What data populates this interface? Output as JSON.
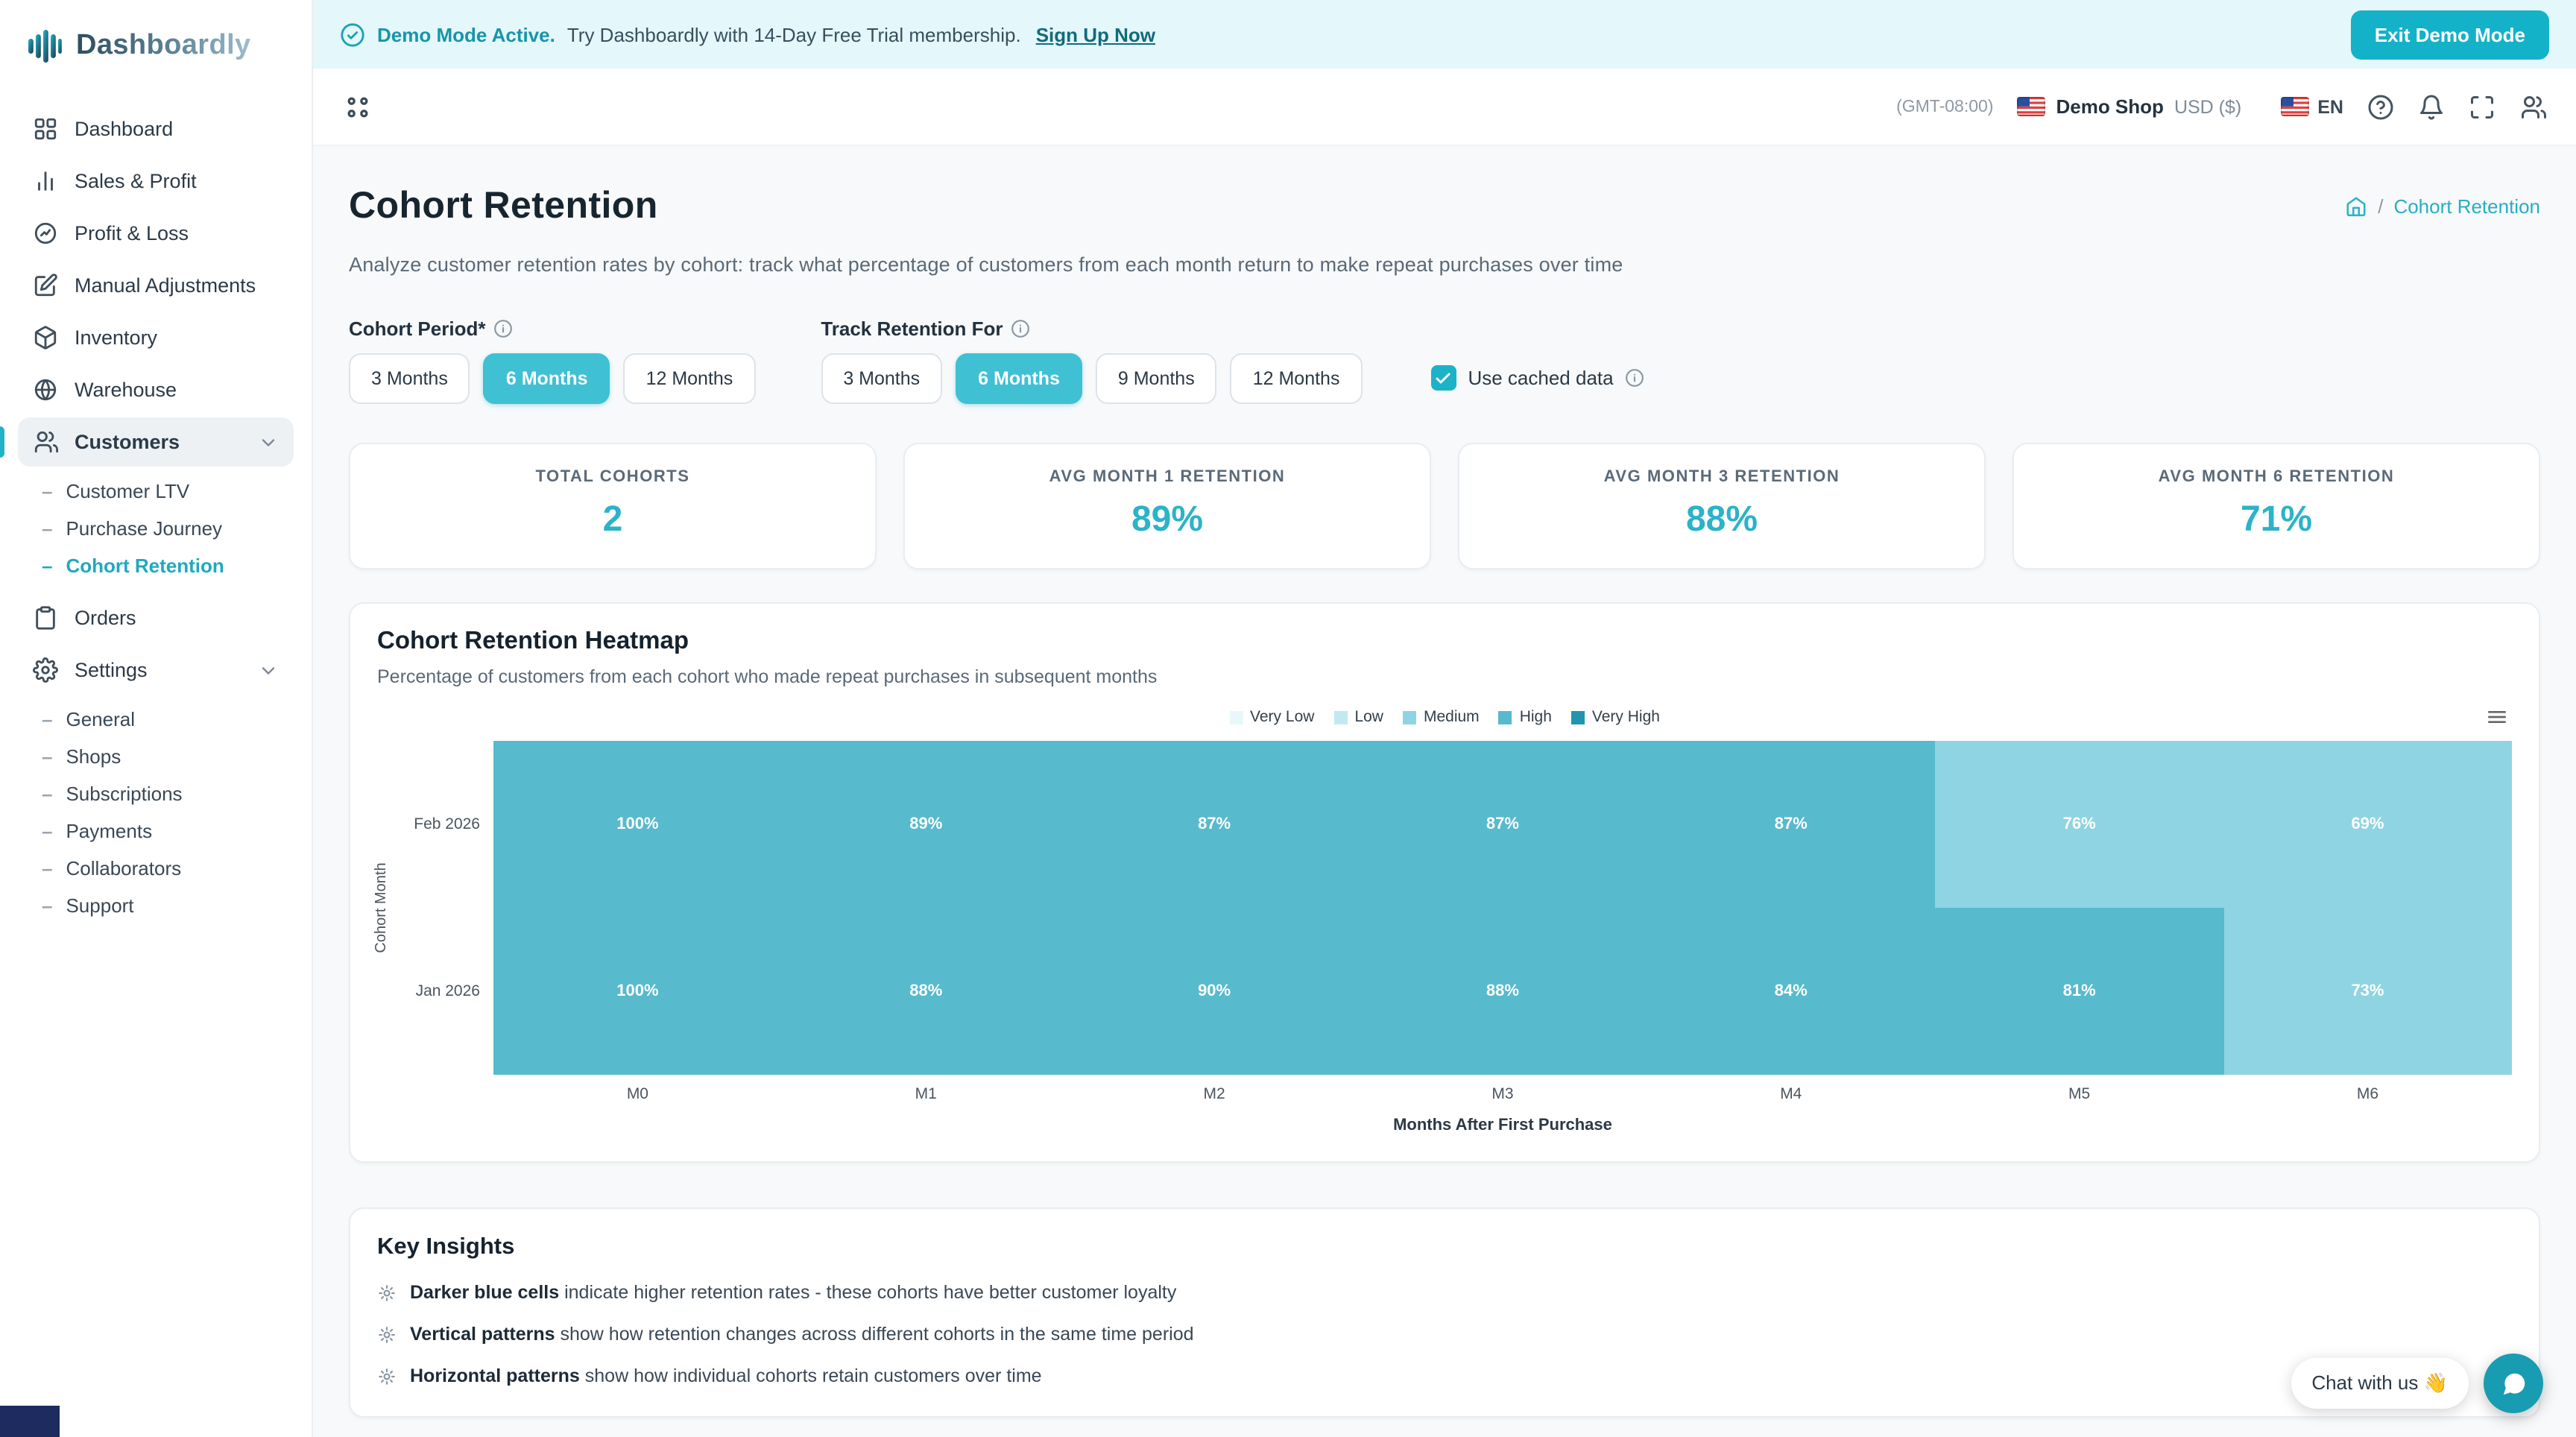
{
  "brand": {
    "name": "Dashboardly"
  },
  "banner": {
    "icon": "check-circle-icon",
    "title": "Demo Mode Active.",
    "text": "Try Dashboardly with 14-Day Free Trial membership.",
    "link": "Sign Up Now",
    "exit_button": "Exit Demo Mode"
  },
  "sidebar": {
    "items": [
      {
        "label": "Dashboard",
        "icon": "dashboard-icon"
      },
      {
        "label": "Sales & Profit",
        "icon": "sales-profit-icon"
      },
      {
        "label": "Profit & Loss",
        "icon": "profit-loss-icon"
      },
      {
        "label": "Manual Adjustments",
        "icon": "manual-adjustments-icon"
      },
      {
        "label": "Inventory",
        "icon": "inventory-icon"
      },
      {
        "label": "Warehouse",
        "icon": "warehouse-icon"
      },
      {
        "label": "Customers",
        "icon": "customers-icon",
        "active": true,
        "expanded": true,
        "children": [
          {
            "label": "Customer LTV"
          },
          {
            "label": "Purchase Journey"
          },
          {
            "label": "Cohort Retention",
            "active": true
          }
        ]
      },
      {
        "label": "Orders",
        "icon": "orders-icon"
      },
      {
        "label": "Settings",
        "icon": "settings-icon",
        "expanded": true,
        "children": [
          {
            "label": "General"
          },
          {
            "label": "Shops"
          },
          {
            "label": "Subscriptions"
          },
          {
            "label": "Payments"
          },
          {
            "label": "Collaborators"
          },
          {
            "label": "Support"
          }
        ]
      }
    ]
  },
  "header": {
    "timezone": "(GMT-08:00)",
    "shop_name": "Demo Shop",
    "currency": "USD ($)",
    "language": "EN",
    "icons": [
      "help-icon",
      "notifications-icon",
      "fullscreen-icon",
      "accounts-icon"
    ]
  },
  "page": {
    "title": "Cohort Retention",
    "description": "Analyze customer retention rates by cohort: track what percentage of customers from each month return to make repeat purchases over time",
    "breadcrumb": {
      "separator": "/",
      "current": "Cohort Retention"
    }
  },
  "controls": {
    "cohort_period": {
      "label": "Cohort Period*",
      "options": [
        "3 Months",
        "6 Months",
        "12 Months"
      ],
      "selected": "6 Months"
    },
    "track_retention": {
      "label": "Track Retention For",
      "options": [
        "3 Months",
        "6 Months",
        "9 Months",
        "12 Months"
      ],
      "selected": "6 Months"
    },
    "cached": {
      "label": "Use cached data",
      "checked": true
    }
  },
  "stats": [
    {
      "label": "TOTAL COHORTS",
      "value": "2"
    },
    {
      "label": "AVG MONTH 1 RETENTION",
      "value": "89%"
    },
    {
      "label": "AVG MONTH 3 RETENTION",
      "value": "88%"
    },
    {
      "label": "AVG MONTH 6 RETENTION",
      "value": "71%"
    }
  ],
  "chart_data": {
    "type": "heatmap",
    "title": "Cohort Retention Heatmap",
    "subtitle": "Percentage of customers from each cohort who made repeat purchases in subsequent months",
    "xlabel": "Months After First Purchase",
    "ylabel": "Cohort Month",
    "columns": [
      "M0",
      "M1",
      "M2",
      "M3",
      "M4",
      "M5",
      "M6"
    ],
    "rows": [
      "Feb 2026",
      "Jan 2026"
    ],
    "values": [
      [
        100,
        89,
        87,
        87,
        87,
        76,
        69
      ],
      [
        100,
        88,
        90,
        88,
        84,
        81,
        73
      ]
    ],
    "unit": "%",
    "legend": [
      {
        "label": "Very Low",
        "color": "#e8f7fa"
      },
      {
        "label": "Low",
        "color": "#c2e9f1"
      },
      {
        "label": "Medium",
        "color": "#8fd4e2"
      },
      {
        "label": "High",
        "color": "#57bacd"
      },
      {
        "label": "Very High",
        "color": "#2195ae"
      }
    ],
    "thresholds": [
      40,
      60,
      80,
      101
    ],
    "legend_position": "top-center",
    "grid": false
  },
  "insights": {
    "title": "Key Insights",
    "items": [
      {
        "term": "Darker blue cells",
        "text": "indicate higher retention rates - these cohorts have better customer loyalty"
      },
      {
        "term": "Vertical patterns",
        "text": "show how retention changes across different cohorts in the same time period"
      },
      {
        "term": "Horizontal patterns",
        "text": "show how individual cohorts retain customers over time"
      }
    ]
  },
  "chat": {
    "label": "Chat with us 👋"
  }
}
